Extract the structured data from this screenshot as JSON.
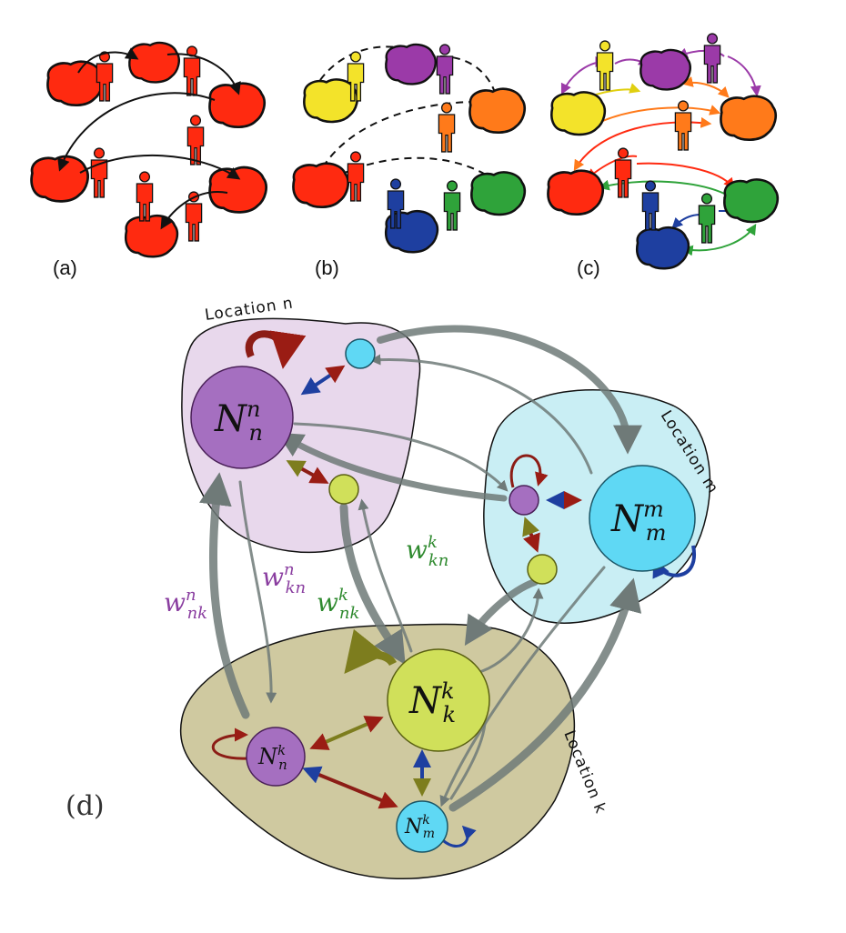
{
  "panels": {
    "a": "(a)",
    "b": "(b)",
    "c": "(c)",
    "d": "(d)"
  },
  "locations": {
    "n": "Location n",
    "m": "Location m",
    "k": "Location k"
  },
  "nodes": {
    "Nnn": {
      "base": "N",
      "sub": "n",
      "sup": "n"
    },
    "Nmm": {
      "base": "N",
      "sub": "m",
      "sup": "m"
    },
    "Nkk": {
      "base": "N",
      "sub": "k",
      "sup": "k"
    },
    "Nnk": {
      "base": "N",
      "sub": "n",
      "sup": "k"
    },
    "Nmk": {
      "base": "N",
      "sub": "m",
      "sup": "k"
    }
  },
  "weights": {
    "w_nk_n": {
      "base": "w",
      "sub": "nk",
      "sup": "n"
    },
    "w_kn_n": {
      "base": "w",
      "sub": "kn",
      "sup": "n"
    },
    "w_nk_k": {
      "base": "w",
      "sub": "nk",
      "sup": "k"
    },
    "w_kn_k": {
      "base": "w",
      "sub": "kn",
      "sup": "k"
    }
  },
  "colors": {
    "red": "#ff2a10",
    "purple": "#9b3aa8",
    "yellow": "#f3e32a",
    "orange": "#ff7a1a",
    "green": "#2fa33a",
    "blue": "#1e3fa0",
    "loc_n_fill": "#e8d8ec",
    "loc_m_fill": "#c9eef4",
    "loc_k_fill": "#cfc9a0",
    "node_purple": "#a56fc0",
    "node_cyan": "#5fd8f4",
    "node_lime": "#d0e05a",
    "gray_arrow": "#6f7a78"
  }
}
